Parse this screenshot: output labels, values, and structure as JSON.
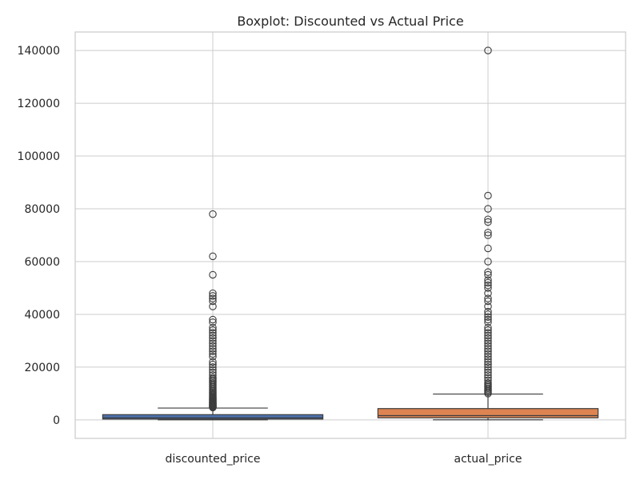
{
  "chart_data": {
    "type": "box",
    "title": "Boxplot: Discounted vs Actual Price",
    "xlabel": "",
    "ylabel": "",
    "ylim": [
      -7000,
      147000
    ],
    "yticks": [
      0,
      20000,
      40000,
      60000,
      80000,
      100000,
      120000,
      140000
    ],
    "grid": true,
    "categories": [
      "discounted_price",
      "actual_price"
    ],
    "boxes": [
      {
        "category": "discounted_price",
        "color": "#4c72b0",
        "q1": 325,
        "median": 800,
        "q3": 2000,
        "whisker_low": 39,
        "whisker_high": 4500,
        "outliers": [
          4700,
          4900,
          5100,
          5300,
          5500,
          5700,
          5900,
          6100,
          6300,
          6500,
          6700,
          6900,
          7200,
          7500,
          7800,
          8100,
          8400,
          8700,
          9000,
          9400,
          9800,
          10200,
          10600,
          11000,
          11500,
          12000,
          12500,
          13000,
          13500,
          14000,
          14500,
          15000,
          15500,
          16000,
          17000,
          18000,
          19000,
          20000,
          21000,
          22000,
          24000,
          25000,
          26000,
          27000,
          28000,
          29000,
          30000,
          31000,
          32000,
          33000,
          34000,
          35000,
          37000,
          38000,
          43000,
          45000,
          46000,
          47000,
          48000,
          55000,
          62000,
          78000
        ]
      },
      {
        "category": "actual_price",
        "color": "#dd8452",
        "q1": 800,
        "median": 1650,
        "q3": 4300,
        "whisker_low": 39,
        "whisker_high": 9800,
        "outliers": [
          10000,
          10500,
          11000,
          11500,
          12000,
          12500,
          13000,
          13500,
          14000,
          15000,
          16000,
          17000,
          18000,
          19000,
          20000,
          21000,
          22000,
          23000,
          24000,
          25000,
          26000,
          27000,
          28000,
          29000,
          30000,
          31000,
          32000,
          33000,
          34000,
          35000,
          37000,
          38000,
          39000,
          40000,
          41000,
          43000,
          45000,
          46000,
          48000,
          50000,
          51000,
          52000,
          53000,
          55000,
          56000,
          60000,
          65000,
          70000,
          71000,
          75000,
          76000,
          80000,
          85000,
          140000
        ]
      }
    ]
  }
}
